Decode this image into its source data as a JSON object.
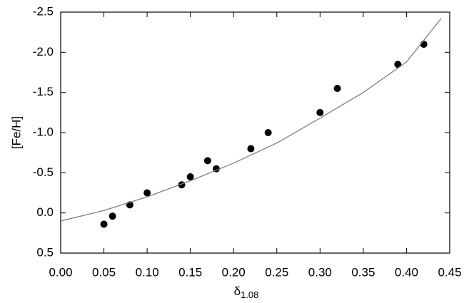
{
  "chart_data": {
    "type": "scatter",
    "y_label": "[Fe/H]",
    "x_label": "δ",
    "x_label_subscript": "1.08",
    "xlim": [
      0,
      0.45
    ],
    "xticks": [
      {
        "value": 0,
        "label": "0.00"
      },
      {
        "value": 0.05,
        "label": "0.05"
      },
      {
        "value": 0.1,
        "label": "0.10"
      },
      {
        "value": 0.15,
        "label": "0.15"
      },
      {
        "value": 0.2,
        "label": "0.20"
      },
      {
        "value": 0.25,
        "label": "0.25"
      },
      {
        "value": 0.3,
        "label": "0.30"
      },
      {
        "value": 0.35,
        "label": "0.35"
      },
      {
        "value": 0.4,
        "label": "0.40"
      },
      {
        "value": 0.45,
        "label": "0.45"
      }
    ],
    "ylim": [
      0.5,
      -2.5
    ],
    "yticks": [
      -2.5,
      {
        "value": -2,
        "label": "-2.0"
      },
      -1.5,
      {
        "value": -1,
        "label": "-1.0"
      },
      -0.5,
      {
        "value": 0,
        "label": "0.0"
      },
      0.5
    ],
    "series": [
      {
        "type": "scatter",
        "color": "#000000",
        "x": [
          0.05,
          0.06,
          0.08,
          0.1,
          0.14,
          0.15,
          0.17,
          0.18,
          0.22,
          0.24,
          0.3,
          0.32,
          0.39,
          0.42
        ],
        "values": [
          0.14,
          0.04,
          -0.1,
          -0.25,
          -0.35,
          -0.45,
          -0.65,
          -0.55,
          -0.8,
          -1.0,
          -1.25,
          -1.55,
          -1.85,
          -2.1
        ]
      },
      {
        "type": "line",
        "color": "#7f7f7f",
        "x": [
          0,
          0.05,
          0.1,
          0.15,
          0.2,
          0.25,
          0.3,
          0.35,
          0.4,
          0.44
        ],
        "values": [
          0.1,
          -0.03,
          -0.2,
          -0.4,
          -0.62,
          -0.87,
          -1.18,
          -1.5,
          -1.88,
          -2.42
        ]
      }
    ]
  }
}
